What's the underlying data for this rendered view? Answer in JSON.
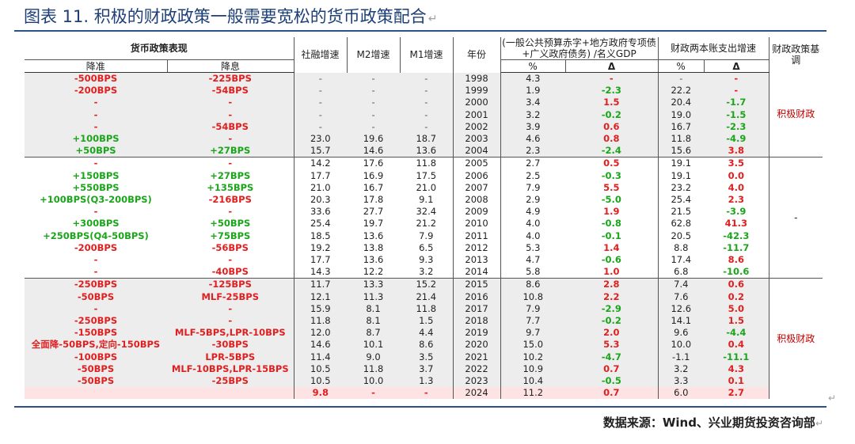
{
  "title": "图表 11. 积极的财政政策一般需要宽松的货币政策配合",
  "return_mark": "↵",
  "source": "数据来源：Wind、兴业期货投资咨询部",
  "header": {
    "monetary_group": "货币政策表现",
    "rrr": "降准",
    "rate": "降息",
    "tsf": "社融增速",
    "m2": "M2增速",
    "m1": "M1增速",
    "year": "年份",
    "deficit_group": "(一般公共预算赤字+地方政府专项债+广义政府债务) /名义GDP",
    "deficit_pct": "%",
    "deficit_delta": "Δ",
    "expend_group": "财政两本账支出增速",
    "expend_pct": "%",
    "expend_delta": "Δ",
    "fiscal_tone": "财政政策基调"
  },
  "fiscal_tone_blocks": {
    "b1": "积极财政",
    "b2": "-",
    "b3": "积极财政"
  },
  "rows": [
    {
      "rrr": "-500BPS",
      "rate": "-225BPS",
      "tsf": "-",
      "m2": "-",
      "m1": "-",
      "year": "1998",
      "def": "4.3",
      "def_d": "-",
      "exp": "-",
      "exp_d": "-"
    },
    {
      "rrr": "-200BPS",
      "rate": "-54BPS",
      "tsf": "-",
      "m2": "-",
      "m1": "-",
      "year": "1999",
      "def": "1.9",
      "def_d": "-2.3",
      "exp": "22.2",
      "exp_d": "-"
    },
    {
      "rrr": "-",
      "rate": "-",
      "tsf": "-",
      "m2": "-",
      "m1": "-",
      "year": "2000",
      "def": "3.4",
      "def_d": "1.5",
      "exp": "20.4",
      "exp_d": "-1.7"
    },
    {
      "rrr": "-",
      "rate": "-",
      "tsf": "-",
      "m2": "-",
      "m1": "-",
      "year": "2001",
      "def": "3.2",
      "def_d": "-0.2",
      "exp": "19.0",
      "exp_d": "-1.5"
    },
    {
      "rrr": "-",
      "rate": "-54BPS",
      "tsf": "-",
      "m2": "-",
      "m1": "-",
      "year": "2002",
      "def": "3.9",
      "def_d": "0.6",
      "exp": "16.7",
      "exp_d": "-2.3"
    },
    {
      "rrr": "+100BPS",
      "rate": "-",
      "tsf": "23.0",
      "m2": "19.6",
      "m1": "18.7",
      "year": "2003",
      "def": "4.6",
      "def_d": "0.8",
      "exp": "11.8",
      "exp_d": "-4.9"
    },
    {
      "rrr": "+50BPS",
      "rate": "+27BPS",
      "tsf": "15.7",
      "m2": "14.6",
      "m1": "13.6",
      "year": "2004",
      "def": "2.3",
      "def_d": "-2.4",
      "exp": "15.6",
      "exp_d": "3.8"
    },
    {
      "rrr": "-",
      "rate": "-",
      "tsf": "14.2",
      "m2": "17.6",
      "m1": "11.8",
      "year": "2005",
      "def": "2.7",
      "def_d": "0.5",
      "exp": "19.1",
      "exp_d": "3.5"
    },
    {
      "rrr": "+150BPS",
      "rate": "+27BPS",
      "tsf": "17.7",
      "m2": "16.9",
      "m1": "17.5",
      "year": "2006",
      "def": "2.5",
      "def_d": "-0.3",
      "exp": "19.1",
      "exp_d": "0.0"
    },
    {
      "rrr": "+550BPS",
      "rate": "+135BPS",
      "tsf": "21.0",
      "m2": "16.7",
      "m1": "21.0",
      "year": "2007",
      "def": "7.9",
      "def_d": "5.5",
      "exp": "23.2",
      "exp_d": "4.0"
    },
    {
      "rrr": "+100BPS(Q3-200BPS)",
      "rate": "-216BPS",
      "tsf": "20.3",
      "m2": "17.8",
      "m1": "9.1",
      "year": "2008",
      "def": "2.9",
      "def_d": "-5.0",
      "exp": "25.4",
      "exp_d": "2.3"
    },
    {
      "rrr": "-",
      "rate": "-",
      "tsf": "33.6",
      "m2": "27.7",
      "m1": "32.4",
      "year": "2009",
      "def": "4.9",
      "def_d": "1.9",
      "exp": "21.5",
      "exp_d": "-3.9"
    },
    {
      "rrr": "+300BPS",
      "rate": "+50BPS",
      "tsf": "25.4",
      "m2": "19.7",
      "m1": "21.2",
      "year": "2010",
      "def": "4.0",
      "def_d": "-0.8",
      "exp": "62.8",
      "exp_d": "41.3"
    },
    {
      "rrr": "+250BPS(Q4-50BPS)",
      "rate": "+75BPS",
      "tsf": "18.5",
      "m2": "13.6",
      "m1": "7.9",
      "year": "2011",
      "def": "4.0",
      "def_d": "-0.1",
      "exp": "20.5",
      "exp_d": "-42.3"
    },
    {
      "rrr": "-200BPS",
      "rate": "-56BPS",
      "tsf": "19.2",
      "m2": "13.8",
      "m1": "6.5",
      "year": "2012",
      "def": "5.3",
      "def_d": "1.4",
      "exp": "8.8",
      "exp_d": "-11.7"
    },
    {
      "rrr": "-",
      "rate": "-",
      "tsf": "17.7",
      "m2": "13.6",
      "m1": "9.3",
      "year": "2013",
      "def": "4.7",
      "def_d": "-0.6",
      "exp": "17.4",
      "exp_d": "8.6"
    },
    {
      "rrr": "-",
      "rate": "-40BPS",
      "tsf": "14.3",
      "m2": "12.2",
      "m1": "3.2",
      "year": "2014",
      "def": "5.8",
      "def_d": "1.0",
      "exp": "6.8",
      "exp_d": "-10.6"
    },
    {
      "rrr": "-250BPS",
      "rate": "-125BPS",
      "tsf": "11.7",
      "m2": "13.3",
      "m1": "15.2",
      "year": "2015",
      "def": "8.6",
      "def_d": "2.8",
      "exp": "7.4",
      "exp_d": "0.6"
    },
    {
      "rrr": "-50BPS",
      "rate": "MLF-25BPS",
      "tsf": "12.1",
      "m2": "11.3",
      "m1": "21.4",
      "year": "2016",
      "def": "10.8",
      "def_d": "2.2",
      "exp": "7.6",
      "exp_d": "0.2"
    },
    {
      "rrr": "-",
      "rate": "-",
      "tsf": "15.9",
      "m2": "8.1",
      "m1": "11.8",
      "year": "2017",
      "def": "7.9",
      "def_d": "-2.9",
      "exp": "12.6",
      "exp_d": "5.0"
    },
    {
      "rrr": "-250BPS",
      "rate": "-",
      "tsf": "11.8",
      "m2": "8.1",
      "m1": "1.5",
      "year": "2018",
      "def": "7.7",
      "def_d": "-0.2",
      "exp": "14.1",
      "exp_d": "1.5"
    },
    {
      "rrr": "-150BPS",
      "rate": "MLF-5BPS,LPR-10BPS",
      "tsf": "12.0",
      "m2": "8.7",
      "m1": "4.4",
      "year": "2019",
      "def": "9.7",
      "def_d": "2.0",
      "exp": "9.6",
      "exp_d": "-4.4"
    },
    {
      "rrr": "全面降-50BPS,定向-150BPS",
      "rate": "-30BPS",
      "tsf": "14.6",
      "m2": "10.1",
      "m1": "8.6",
      "year": "2020",
      "def": "15.0",
      "def_d": "5.3",
      "exp": "10.0",
      "exp_d": "0.4"
    },
    {
      "rrr": "-100BPS",
      "rate": "LPR-5BPS",
      "tsf": "11.4",
      "m2": "9.0",
      "m1": "3.5",
      "year": "2021",
      "def": "10.2",
      "def_d": "-4.7",
      "exp": "-1.1",
      "exp_d": "-11.1"
    },
    {
      "rrr": "-50BPS",
      "rate": "MLF-10BPS,LPR-15BPS",
      "tsf": "10.5",
      "m2": "11.8",
      "m1": "3.7",
      "year": "2022",
      "def": "10.9",
      "def_d": "0.7",
      "exp": "3.2",
      "exp_d": "4.3"
    },
    {
      "rrr": "-50BPS",
      "rate": "-25BPS",
      "tsf": "10.5",
      "m2": "10.0",
      "m1": "1.3",
      "year": "2023",
      "def": "10.4",
      "def_d": "-0.5",
      "exp": "3.3",
      "exp_d": "0.1"
    },
    {
      "rrr": "",
      "rate": "",
      "tsf": "9.8",
      "m2": "-",
      "m1": "-",
      "year": "2024",
      "def": "11.2",
      "def_d": "0.7",
      "exp": "6.0",
      "exp_d": "2.7"
    }
  ],
  "colors": {
    "positive": "#e02020",
    "negative": "#1aa51a",
    "header_rule": "#2f4f8a",
    "title": "#1d3f78"
  }
}
